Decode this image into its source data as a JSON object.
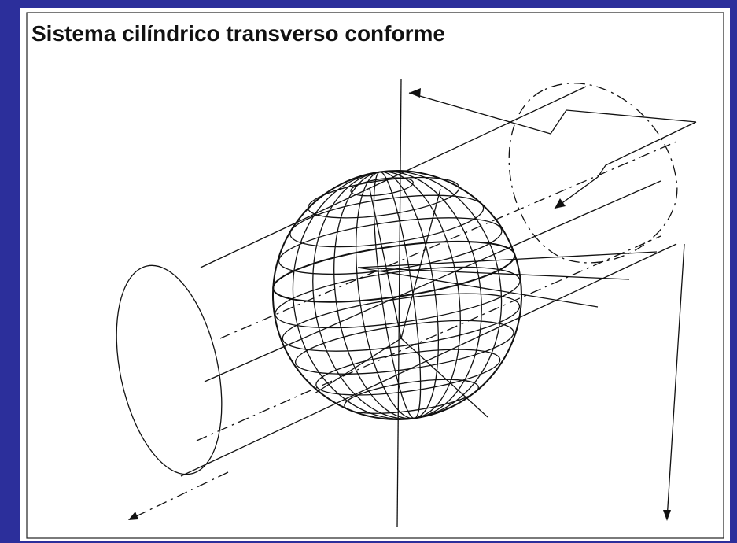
{
  "header": {
    "title": "Sistema cilíndrico transverso conforme"
  }
}
